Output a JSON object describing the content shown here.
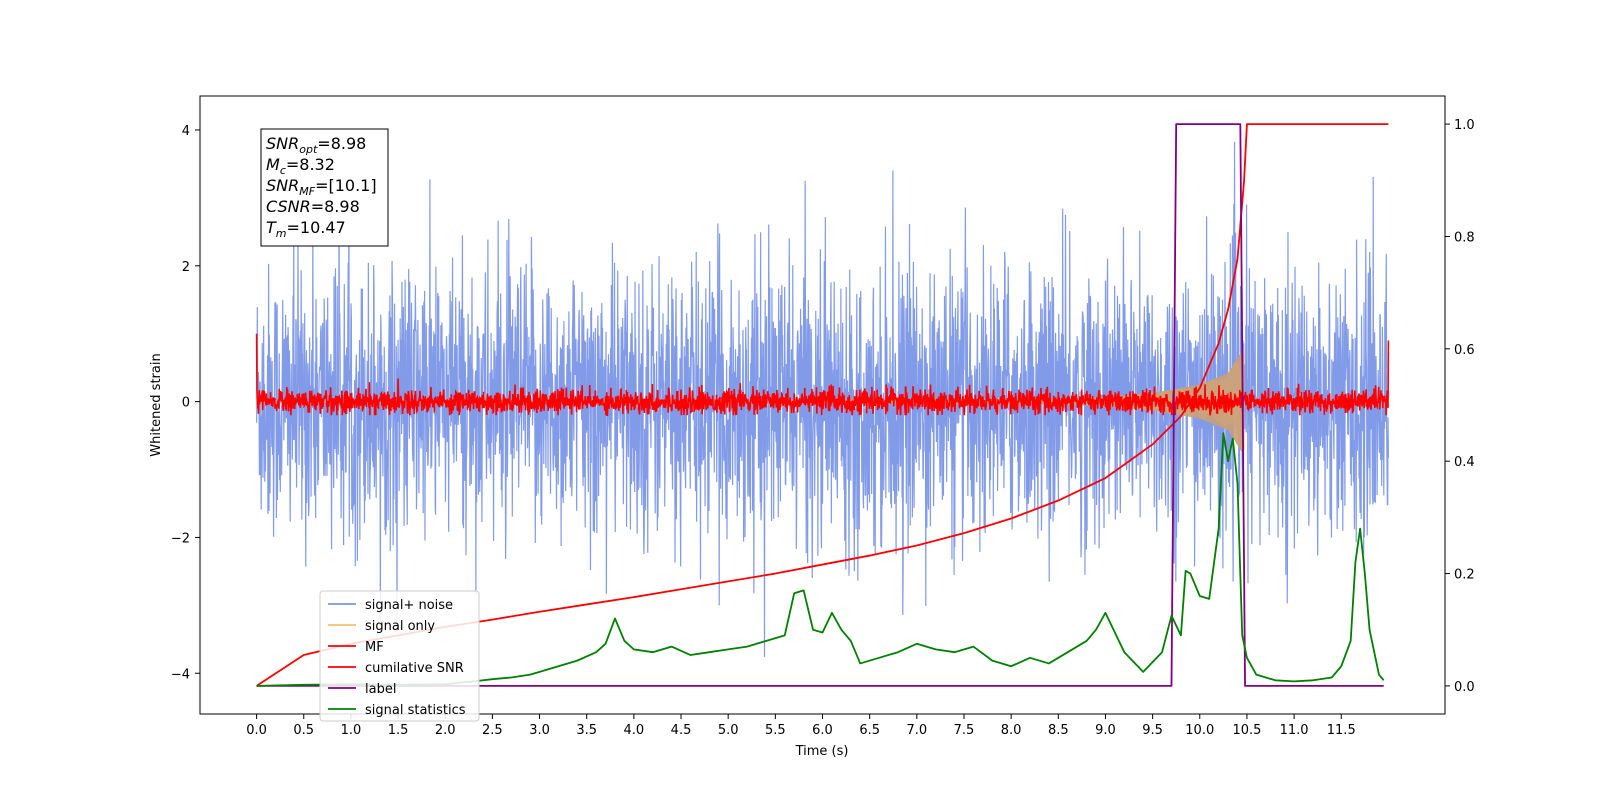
{
  "chart_data": {
    "type": "line",
    "xlabel": "Time (s)",
    "ylabel": "Whitened strain",
    "xlim": [
      -0.6,
      12.6
    ],
    "ylim": [
      -4.6,
      4.5
    ],
    "y2lim": [
      -0.05,
      1.05
    ],
    "x_ticks": [
      "0.0",
      "0.5",
      "1.0",
      "1.5",
      "2.0",
      "2.5",
      "3.0",
      "3.5",
      "4.0",
      "4.5",
      "5.0",
      "5.5",
      "6.0",
      "6.5",
      "7.0",
      "7.5",
      "8.0",
      "8.5",
      "9.0",
      "9.5",
      "10.0",
      "10.5",
      "11.0",
      "11.5"
    ],
    "y_ticks": [
      "4",
      "2",
      "0",
      "−2",
      "−4"
    ],
    "y2_ticks": [
      "1.0",
      "0.8",
      "0.6",
      "0.4",
      "0.2",
      "0.0"
    ],
    "legend_position": "lower-left",
    "annotation": [
      {
        "base": "SNR",
        "sub": "opt",
        "value": "=8.98"
      },
      {
        "base": "M",
        "sub": "c",
        "value": "=8.32"
      },
      {
        "base": "SNR",
        "sub": "MF",
        "value": "=[10.1]"
      },
      {
        "base": "CSNR",
        "sub": "",
        "value": "=8.98"
      },
      {
        "base": "T",
        "sub": "m",
        "value": "=10.47"
      }
    ],
    "series": [
      {
        "name": "signal+ noise",
        "color": "#7b96e8",
        "axis": "left",
        "noise_sigma": 1.0,
        "duration": 12.0
      },
      {
        "name": "signal only",
        "color": "#f5c070",
        "axis": "left",
        "envelope": [
          [
            0,
            0.01
          ],
          [
            8.5,
            0.04
          ],
          [
            9.0,
            0.07
          ],
          [
            9.5,
            0.13
          ],
          [
            10.0,
            0.25
          ],
          [
            10.3,
            0.42
          ],
          [
            10.47,
            0.8
          ]
        ]
      },
      {
        "name": "MF",
        "color": "#ff0000",
        "axis": "left",
        "noise_sigma": 0.09,
        "edge_values": [
          1.0,
          0.9
        ]
      },
      {
        "name": "cumilative SNR",
        "color": "#ff0000",
        "axis": "right",
        "x": [
          0,
          0.5,
          1,
          1.5,
          2,
          2.5,
          3,
          3.5,
          4,
          4.5,
          5,
          5.5,
          6,
          6.5,
          7,
          7.5,
          8,
          8.5,
          9,
          9.5,
          9.8,
          10,
          10.2,
          10.3,
          10.4,
          10.47,
          10.5,
          12
        ],
        "y": [
          0,
          0.055,
          0.075,
          0.09,
          0.105,
          0.118,
          0.132,
          0.145,
          0.158,
          0.172,
          0.186,
          0.2,
          0.216,
          0.232,
          0.25,
          0.272,
          0.298,
          0.33,
          0.37,
          0.43,
          0.48,
          0.53,
          0.61,
          0.67,
          0.76,
          0.9,
          1.0,
          1.0
        ]
      },
      {
        "name": "label",
        "color": "#800080",
        "axis": "right",
        "x": [
          0,
          9.7,
          9.75,
          10.43,
          10.48,
          11.95
        ],
        "y": [
          0,
          0,
          1,
          1,
          0,
          0
        ]
      },
      {
        "name": "signal statistics",
        "color": "#008000",
        "axis": "right",
        "x": [
          0,
          0.5,
          1,
          1.5,
          2,
          2.3,
          2.5,
          2.7,
          2.9,
          3.0,
          3.2,
          3.4,
          3.6,
          3.7,
          3.8,
          3.9,
          4.0,
          4.2,
          4.4,
          4.6,
          4.8,
          5.0,
          5.2,
          5.4,
          5.6,
          5.7,
          5.8,
          5.9,
          6.0,
          6.1,
          6.2,
          6.3,
          6.4,
          6.6,
          6.8,
          7.0,
          7.2,
          7.4,
          7.6,
          7.8,
          8.0,
          8.2,
          8.4,
          8.6,
          8.8,
          8.9,
          9.0,
          9.2,
          9.4,
          9.6,
          9.7,
          9.8,
          9.85,
          9.9,
          10.0,
          10.1,
          10.2,
          10.25,
          10.3,
          10.35,
          10.4,
          10.45,
          10.5,
          10.6,
          10.8,
          11.0,
          11.2,
          11.4,
          11.5,
          11.6,
          11.65,
          11.7,
          11.75,
          11.8,
          11.9,
          11.95
        ],
        "y": [
          0,
          0.002,
          0.003,
          0.002,
          0.003,
          0.008,
          0.012,
          0.015,
          0.02,
          0.025,
          0.035,
          0.045,
          0.06,
          0.075,
          0.12,
          0.08,
          0.065,
          0.06,
          0.07,
          0.055,
          0.06,
          0.065,
          0.07,
          0.08,
          0.09,
          0.165,
          0.17,
          0.1,
          0.095,
          0.13,
          0.1,
          0.08,
          0.04,
          0.05,
          0.06,
          0.075,
          0.065,
          0.06,
          0.07,
          0.045,
          0.035,
          0.05,
          0.04,
          0.06,
          0.08,
          0.1,
          0.13,
          0.06,
          0.025,
          0.06,
          0.125,
          0.09,
          0.205,
          0.2,
          0.16,
          0.155,
          0.28,
          0.45,
          0.4,
          0.44,
          0.36,
          0.09,
          0.05,
          0.02,
          0.01,
          0.008,
          0.01,
          0.015,
          0.035,
          0.08,
          0.22,
          0.28,
          0.2,
          0.1,
          0.02,
          0.01
        ]
      }
    ]
  }
}
